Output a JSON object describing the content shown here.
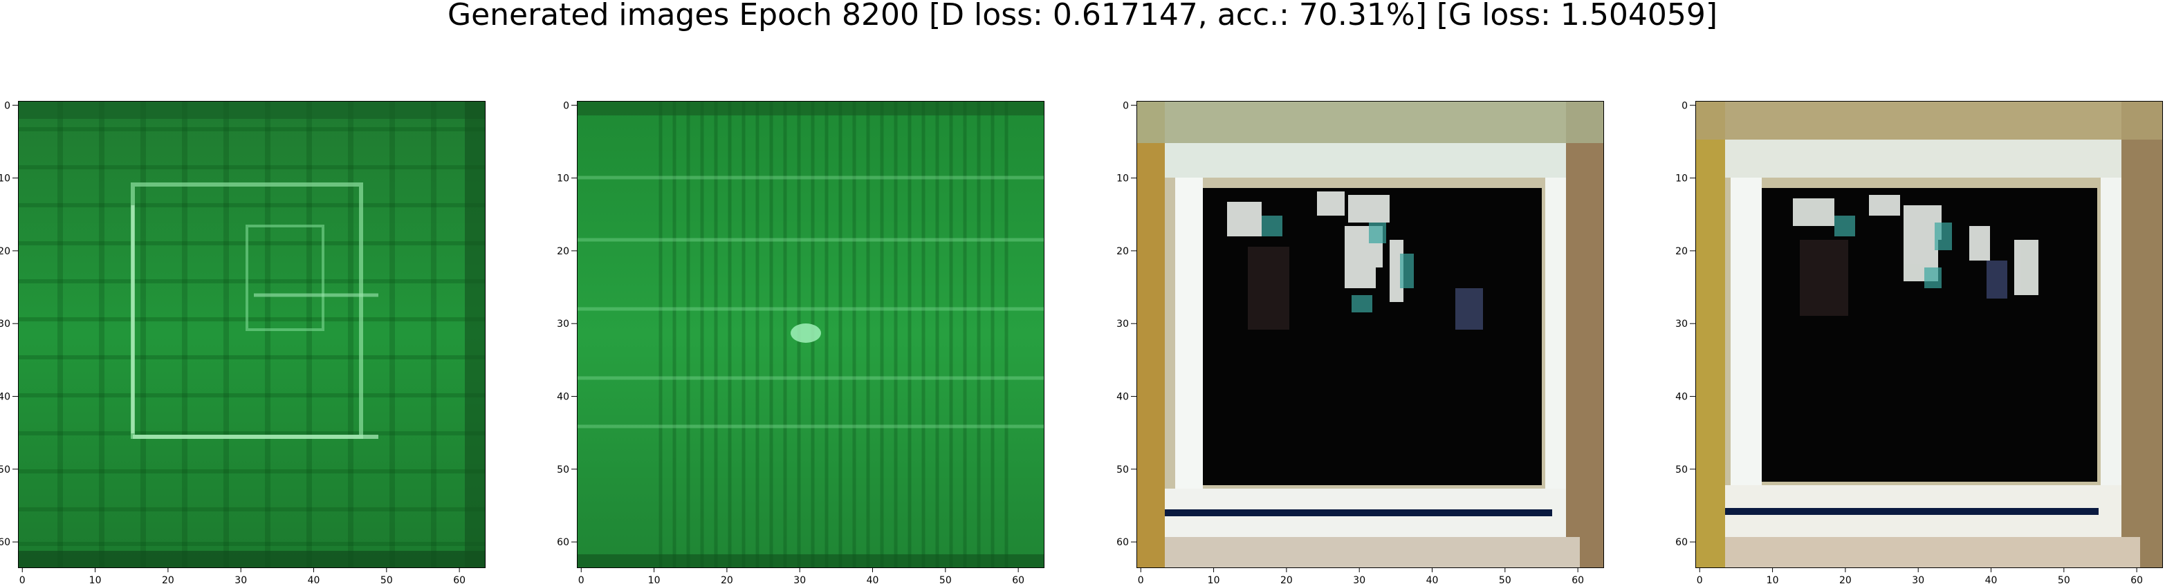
{
  "chart_data": {
    "type": "heatmap",
    "title": "Generated images Epoch 8200 [D loss: 0.617147, acc.: 70.31%] [G loss: 1.504059]",
    "image_extent": [
      -0.5,
      63.5
    ],
    "x_ticks": [
      0,
      10,
      20,
      30,
      40,
      50,
      60
    ],
    "y_ticks": [
      0,
      10,
      20,
      30,
      40,
      50,
      60
    ],
    "panels": [
      {
        "style": "green-grid"
      },
      {
        "style": "green-stripes"
      },
      {
        "style": "dark-window"
      },
      {
        "style": "dark-window"
      }
    ]
  }
}
